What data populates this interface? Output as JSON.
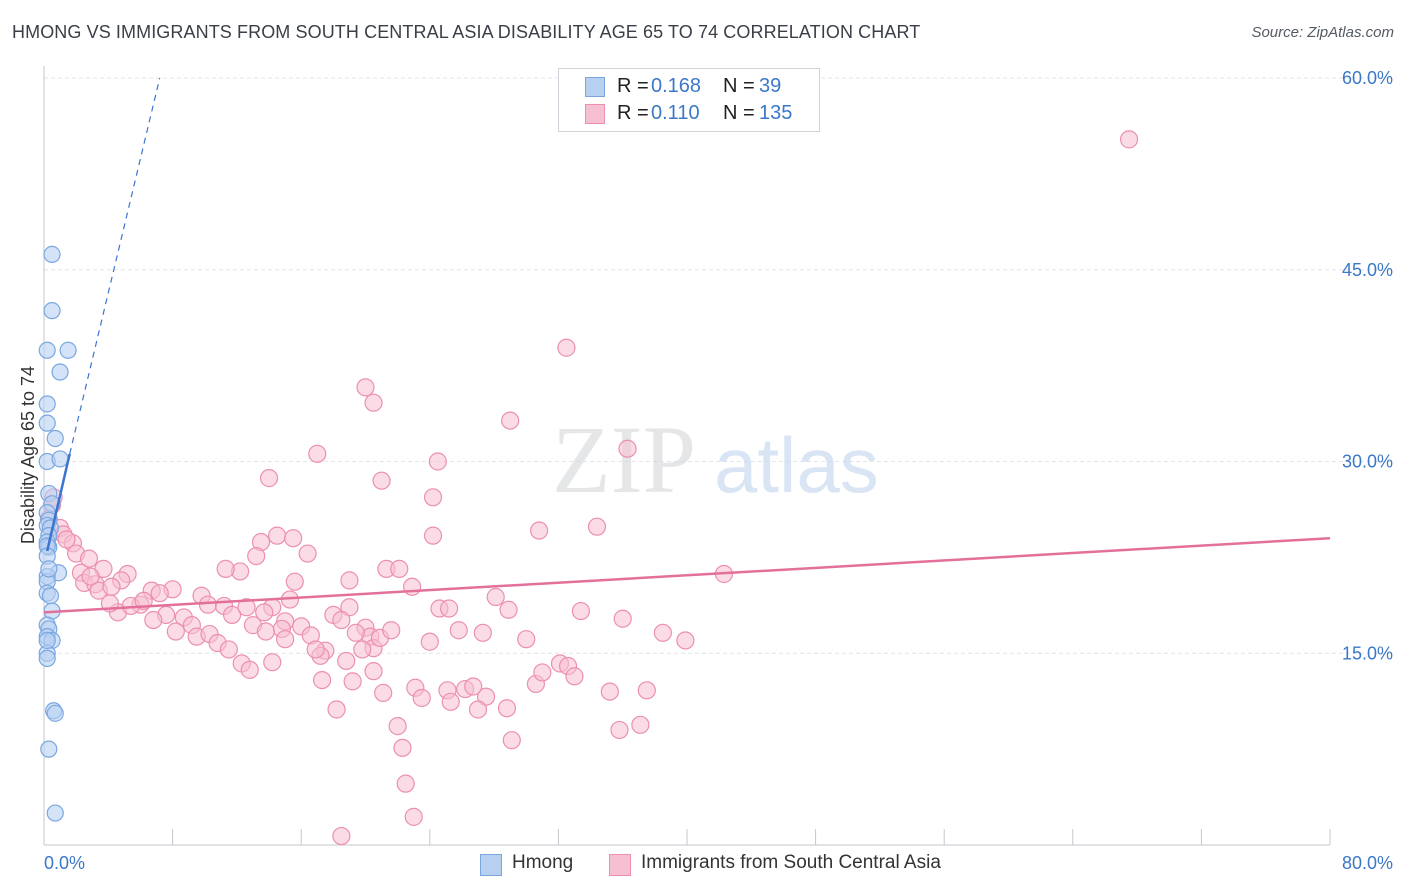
{
  "title": "HMONG VS IMMIGRANTS FROM SOUTH CENTRAL ASIA DISABILITY AGE 65 TO 74 CORRELATION CHART",
  "source": "Source: ZipAtlas.com",
  "legend": {
    "rows": [
      {
        "r_label": "R =",
        "r_value": "0.168",
        "n_label": "N =",
        "n_value": "39"
      },
      {
        "r_label": "R =",
        "r_value": "0.110",
        "n_label": "N =",
        "n_value": "135"
      }
    ]
  },
  "bottom_legend": {
    "series1": "Hmong",
    "series2": "Immigrants from South Central Asia"
  },
  "colors": {
    "hmong_fill": "#b7d0f2",
    "hmong_stroke": "#7aa7e0",
    "hmong_line": "#3d74d0",
    "imm_fill": "#f7c0d2",
    "imm_stroke": "#ec8fb0",
    "imm_line": "#e3709a",
    "axis_label": "#3b78c8",
    "grid": "#e2e5e9"
  },
  "watermark": {
    "zip": "ZIP",
    "atlas": "atlas"
  },
  "chart_data": {
    "type": "scatter",
    "title": "HMONG VS IMMIGRANTS FROM SOUTH CENTRAL ASIA DISABILITY AGE 65 TO 74 CORRELATION CHART",
    "xlabel": "",
    "ylabel": "Disability Age 65 to 74",
    "xlim": [
      0,
      80
    ],
    "ylim": [
      0,
      60
    ],
    "x_tick_labels": [
      "0.0%",
      "80.0%"
    ],
    "y_ticks": [
      15,
      30,
      45,
      60
    ],
    "y_tick_labels": [
      "15.0%",
      "30.0%",
      "45.0%",
      "60.0%"
    ],
    "grid": true,
    "series": [
      {
        "name": "Hmong",
        "points": [
          [
            0.5,
            46.2
          ],
          [
            0.5,
            41.8
          ],
          [
            1.5,
            38.7
          ],
          [
            0.2,
            38.7
          ],
          [
            1.0,
            37.0
          ],
          [
            0.2,
            34.5
          ],
          [
            0.2,
            33.0
          ],
          [
            0.7,
            31.8
          ],
          [
            0.2,
            30.0
          ],
          [
            1.0,
            30.2
          ],
          [
            0.3,
            27.5
          ],
          [
            0.5,
            26.7
          ],
          [
            0.2,
            26.0
          ],
          [
            0.3,
            25.4
          ],
          [
            0.2,
            25.0
          ],
          [
            0.4,
            24.8
          ],
          [
            0.3,
            24.2
          ],
          [
            0.2,
            23.7
          ],
          [
            0.3,
            23.3
          ],
          [
            0.2,
            23.4
          ],
          [
            0.2,
            22.6
          ],
          [
            0.9,
            21.3
          ],
          [
            0.2,
            21.0
          ],
          [
            0.2,
            20.6
          ],
          [
            0.2,
            19.7
          ],
          [
            0.4,
            19.5
          ],
          [
            0.5,
            18.3
          ],
          [
            0.2,
            17.2
          ],
          [
            0.3,
            16.9
          ],
          [
            0.2,
            16.3
          ],
          [
            0.5,
            16.0
          ],
          [
            0.2,
            15.0
          ],
          [
            0.2,
            14.6
          ],
          [
            0.6,
            10.5
          ],
          [
            0.7,
            10.3
          ],
          [
            0.3,
            7.5
          ],
          [
            0.7,
            2.5
          ],
          [
            0.2,
            16.0
          ],
          [
            0.3,
            21.6
          ]
        ],
        "trend_solid": {
          "x": [
            0.2,
            1.6
          ],
          "y": [
            23.0,
            30.6
          ]
        },
        "trend_dashed": {
          "x": [
            1.6,
            7.2
          ],
          "y": [
            30.6,
            60.0
          ]
        }
      },
      {
        "name": "Immigrants from South Central Asia",
        "points": [
          [
            67.5,
            55.2
          ],
          [
            32.5,
            38.9
          ],
          [
            20.0,
            35.8
          ],
          [
            20.5,
            34.6
          ],
          [
            29.0,
            33.2
          ],
          [
            17.0,
            30.6
          ],
          [
            24.5,
            30.0
          ],
          [
            36.3,
            31.0
          ],
          [
            14.0,
            28.7
          ],
          [
            21.0,
            28.5
          ],
          [
            24.2,
            27.2
          ],
          [
            0.6,
            27.2
          ],
          [
            0.5,
            26.6
          ],
          [
            0.3,
            25.5
          ],
          [
            1.0,
            24.8
          ],
          [
            1.2,
            24.3
          ],
          [
            1.8,
            23.6
          ],
          [
            2.0,
            22.8
          ],
          [
            1.4,
            23.9
          ],
          [
            2.8,
            22.4
          ],
          [
            3.7,
            21.6
          ],
          [
            5.2,
            21.2
          ],
          [
            2.3,
            21.3
          ],
          [
            2.5,
            20.5
          ],
          [
            3.2,
            20.4
          ],
          [
            4.8,
            20.7
          ],
          [
            6.7,
            19.9
          ],
          [
            8.0,
            20.0
          ],
          [
            9.8,
            19.5
          ],
          [
            10.2,
            18.8
          ],
          [
            11.2,
            18.7
          ],
          [
            11.7,
            18.0
          ],
          [
            13.5,
            23.7
          ],
          [
            12.2,
            21.4
          ],
          [
            11.3,
            21.6
          ],
          [
            13.2,
            22.6
          ],
          [
            14.5,
            24.2
          ],
          [
            15.5,
            24.0
          ],
          [
            16.4,
            22.8
          ],
          [
            15.6,
            20.6
          ],
          [
            15.3,
            19.2
          ],
          [
            14.2,
            18.6
          ],
          [
            15.0,
            17.5
          ],
          [
            16.0,
            17.1
          ],
          [
            16.6,
            16.4
          ],
          [
            17.5,
            15.2
          ],
          [
            17.2,
            14.8
          ],
          [
            19.0,
            20.7
          ],
          [
            19.0,
            18.6
          ],
          [
            20.0,
            17.0
          ],
          [
            20.3,
            16.3
          ],
          [
            20.5,
            15.4
          ],
          [
            21.3,
            21.6
          ],
          [
            22.1,
            21.6
          ],
          [
            22.9,
            20.2
          ],
          [
            24.2,
            24.2
          ],
          [
            24.6,
            18.5
          ],
          [
            25.2,
            18.5
          ],
          [
            25.8,
            16.8
          ],
          [
            26.2,
            12.2
          ],
          [
            27.5,
            11.6
          ],
          [
            27.0,
            10.6
          ],
          [
            28.8,
            10.7
          ],
          [
            29.1,
            8.2
          ],
          [
            30.0,
            16.1
          ],
          [
            28.1,
            19.4
          ],
          [
            30.6,
            12.6
          ],
          [
            32.1,
            14.2
          ],
          [
            32.6,
            14.0
          ],
          [
            33.4,
            18.3
          ],
          [
            35.2,
            12.0
          ],
          [
            35.8,
            9.0
          ],
          [
            36.0,
            17.7
          ],
          [
            37.1,
            9.4
          ],
          [
            37.5,
            12.1
          ],
          [
            38.5,
            16.6
          ],
          [
            39.9,
            16.0
          ],
          [
            42.3,
            21.2
          ],
          [
            34.4,
            24.9
          ],
          [
            30.8,
            24.6
          ],
          [
            8.7,
            17.8
          ],
          [
            8.2,
            16.7
          ],
          [
            7.6,
            18.0
          ],
          [
            6.8,
            17.6
          ],
          [
            6.0,
            18.8
          ],
          [
            4.6,
            18.2
          ],
          [
            4.1,
            18.9
          ],
          [
            3.4,
            19.9
          ],
          [
            4.2,
            20.2
          ],
          [
            5.4,
            18.7
          ],
          [
            6.2,
            19.1
          ],
          [
            7.2,
            19.7
          ],
          [
            9.2,
            17.2
          ],
          [
            9.5,
            16.3
          ],
          [
            10.3,
            16.5
          ],
          [
            10.8,
            15.8
          ],
          [
            11.5,
            15.3
          ],
          [
            12.3,
            14.2
          ],
          [
            12.8,
            13.7
          ],
          [
            13.0,
            17.2
          ],
          [
            13.7,
            18.2
          ],
          [
            14.8,
            16.9
          ],
          [
            15.0,
            16.1
          ],
          [
            18.0,
            18.0
          ],
          [
            18.5,
            17.6
          ],
          [
            19.4,
            16.6
          ],
          [
            19.8,
            15.3
          ],
          [
            20.5,
            13.6
          ],
          [
            21.1,
            11.9
          ],
          [
            22.0,
            9.3
          ],
          [
            22.3,
            7.6
          ],
          [
            22.5,
            4.8
          ],
          [
            23.1,
            12.3
          ],
          [
            23.5,
            11.5
          ],
          [
            24.0,
            15.9
          ],
          [
            25.1,
            12.1
          ],
          [
            25.3,
            11.2
          ],
          [
            26.7,
            12.4
          ],
          [
            27.3,
            16.6
          ],
          [
            28.9,
            18.4
          ],
          [
            31.0,
            13.5
          ],
          [
            33.0,
            13.2
          ],
          [
            16.9,
            15.3
          ],
          [
            17.3,
            12.9
          ],
          [
            18.2,
            10.6
          ],
          [
            18.8,
            14.4
          ],
          [
            19.2,
            12.8
          ],
          [
            20.9,
            16.2
          ],
          [
            21.6,
            16.8
          ],
          [
            23.0,
            2.2
          ],
          [
            18.5,
            0.7
          ],
          [
            14.2,
            14.3
          ],
          [
            12.6,
            18.6
          ],
          [
            13.8,
            16.7
          ],
          [
            2.9,
            21.0
          ]
        ],
        "trend": {
          "x": [
            0,
            80
          ],
          "y": [
            18.2,
            24.0
          ]
        }
      }
    ]
  }
}
